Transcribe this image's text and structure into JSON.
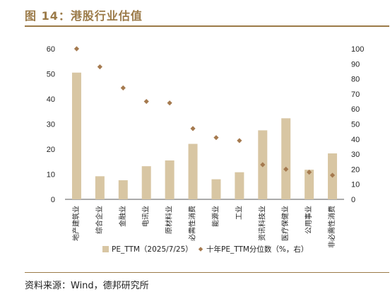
{
  "figure": {
    "title": "图 14：港股行业估值",
    "source": "资料来源：Wind，德邦研究所"
  },
  "colors": {
    "bar": "#d8c6a3",
    "point": "#a57a4f",
    "accent": "#9b7a48"
  },
  "chart_data": {
    "type": "bar",
    "categories": [
      "地产建筑业",
      "综合企业",
      "金融业",
      "电讯业",
      "原材料业",
      "必需性消费",
      "能源业",
      "工业",
      "资讯科技业",
      "医疗保健业",
      "公用事业",
      "非必需性消费"
    ],
    "series": [
      {
        "name": "PE_TTM（2025/7/25）",
        "type": "bar",
        "axis": "left",
        "values": [
          50.5,
          9.2,
          7.6,
          13.2,
          15.5,
          22.1,
          8.0,
          10.8,
          27.5,
          32.3,
          11.8,
          18.3
        ]
      },
      {
        "name": "十年PE_TTM分位数（%，右）",
        "type": "scatter",
        "axis": "right",
        "values": [
          100,
          88,
          74,
          65,
          64,
          47,
          41,
          39,
          23,
          20,
          18,
          16
        ]
      }
    ],
    "ylim_left": [
      0,
      60
    ],
    "yticks_left": [
      0,
      10,
      20,
      30,
      40,
      50,
      60
    ],
    "ylim_right": [
      0,
      100
    ],
    "yticks_right": [
      0,
      10,
      20,
      30,
      40,
      50,
      60,
      70,
      80,
      90,
      100
    ],
    "grid": false,
    "legend_position": "bottom"
  }
}
